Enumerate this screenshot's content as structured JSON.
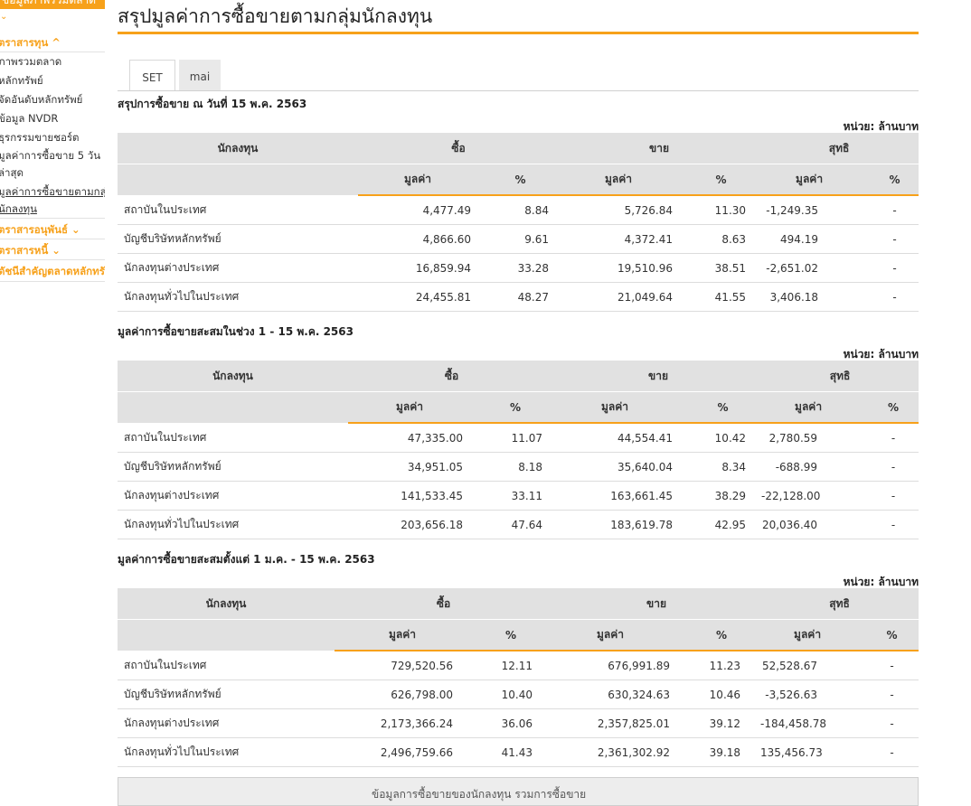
{
  "sidebar": {
    "top_label": "ข้อมูลภาพรวมตลาด",
    "caret": "⌄",
    "items": [
      {
        "label": "ตราสารทุน ^",
        "kind": "head"
      },
      {
        "label": "ภาพรวมตลาด",
        "kind": "item"
      },
      {
        "label": "หลักทรัพย์",
        "kind": "item"
      },
      {
        "label": "จัดอันดับหลักทรัพย์",
        "kind": "item"
      },
      {
        "label": "ข้อมูล NVDR",
        "kind": "item"
      },
      {
        "label": "ธุรกรรมขายชอร์ต",
        "kind": "item"
      },
      {
        "label": "มูลค่าการซื้อขาย 5 วัน",
        "kind": "item"
      },
      {
        "label": "ล่าสุด",
        "kind": "item"
      },
      {
        "label": "มูลค่าการซื้อขายตามกลุ่ม",
        "kind": "active"
      },
      {
        "label": "นักลงทุน",
        "kind": "active"
      },
      {
        "label": "ตราสารอนุพันธ์ ⌄",
        "kind": "head"
      },
      {
        "label": "ตราสารหนี้ ⌄",
        "kind": "head"
      },
      {
        "label": "ดัชนีสำคัญตลาดหลักทรัพย์",
        "kind": "head"
      }
    ]
  },
  "page": {
    "title": "สรุปมูลค่าการซื้อขายตามกลุ่มนักลงทุน",
    "tabs": [
      "SET",
      "mai"
    ],
    "unit": "หน่วย: ล้านบาท",
    "bottom_note": "ข้อมูลการซื้อขายของนักลงทุน รวมการซื้อขาย"
  },
  "headers": {
    "investor": "นักลงทุน",
    "buy": "ซื้อ",
    "sell": "ขาย",
    "net": "สุทธิ",
    "value": "มูลค่า",
    "pct": "%"
  },
  "sections": [
    {
      "title": "สรุปการซื้อขาย ณ วันที่ 15 พ.ค. 2563",
      "rows": [
        {
          "name": "สถาบันในประเทศ",
          "buy": "4,477.49",
          "buy_pct": "8.84",
          "sell": "5,726.84",
          "sell_pct": "11.30",
          "net": "-1,249.35",
          "net_sign": "neg",
          "net_pct": "-"
        },
        {
          "name": "บัญชีบริษัทหลักทรัพย์",
          "buy": "4,866.60",
          "buy_pct": "9.61",
          "sell": "4,372.41",
          "sell_pct": "8.63",
          "net": "494.19",
          "net_sign": "pos",
          "net_pct": "-"
        },
        {
          "name": "นักลงทุนต่างประเทศ",
          "buy": "16,859.94",
          "buy_pct": "33.28",
          "sell": "19,510.96",
          "sell_pct": "38.51",
          "net": "-2,651.02",
          "net_sign": "neg",
          "net_pct": "-"
        },
        {
          "name": "นักลงทุนทั่วไปในประเทศ",
          "buy": "24,455.81",
          "buy_pct": "48.27",
          "sell": "21,049.64",
          "sell_pct": "41.55",
          "net": "3,406.18",
          "net_sign": "pos",
          "net_pct": "-"
        }
      ]
    },
    {
      "title": "มูลค่าการซื้อขายสะสมในช่วง 1 - 15 พ.ค. 2563",
      "rows": [
        {
          "name": "สถาบันในประเทศ",
          "buy": "47,335.00",
          "buy_pct": "11.07",
          "sell": "44,554.41",
          "sell_pct": "10.42",
          "net": "2,780.59",
          "net_sign": "pos",
          "net_pct": "-"
        },
        {
          "name": "บัญชีบริษัทหลักทรัพย์",
          "buy": "34,951.05",
          "buy_pct": "8.18",
          "sell": "35,640.04",
          "sell_pct": "8.34",
          "net": "-688.99",
          "net_sign": "neg",
          "net_pct": "-"
        },
        {
          "name": "นักลงทุนต่างประเทศ",
          "buy": "141,533.45",
          "buy_pct": "33.11",
          "sell": "163,661.45",
          "sell_pct": "38.29",
          "net": "-22,128.00",
          "net_sign": "neg",
          "net_pct": "-"
        },
        {
          "name": "นักลงทุนทั่วไปในประเทศ",
          "buy": "203,656.18",
          "buy_pct": "47.64",
          "sell": "183,619.78",
          "sell_pct": "42.95",
          "net": "20,036.40",
          "net_sign": "pos",
          "net_pct": "-"
        }
      ]
    },
    {
      "title": "มูลค่าการซื้อขายสะสมตั้งแต่ 1 ม.ค. - 15 พ.ค. 2563",
      "rows": [
        {
          "name": "สถาบันในประเทศ",
          "buy": "729,520.56",
          "buy_pct": "12.11",
          "sell": "676,991.89",
          "sell_pct": "11.23",
          "net": "52,528.67",
          "net_sign": "pos",
          "net_pct": "-"
        },
        {
          "name": "บัญชีบริษัทหลักทรัพย์",
          "buy": "626,798.00",
          "buy_pct": "10.40",
          "sell": "630,324.63",
          "sell_pct": "10.46",
          "net": "-3,526.63",
          "net_sign": "neg",
          "net_pct": "-"
        },
        {
          "name": "นักลงทุนต่างประเทศ",
          "buy": "2,173,366.24",
          "buy_pct": "36.06",
          "sell": "2,357,825.01",
          "sell_pct": "39.12",
          "net": "-184,458.78",
          "net_sign": "neg",
          "net_pct": "-"
        },
        {
          "name": "นักลงทุนทั่วไปในประเทศ",
          "buy": "2,496,759.66",
          "buy_pct": "41.43",
          "sell": "2,361,302.92",
          "sell_pct": "39.18",
          "net": "135,456.73",
          "net_sign": "pos",
          "net_pct": "-"
        }
      ]
    }
  ],
  "colors": {
    "accent": "#f7a11a",
    "negative": "#d1141c",
    "positive": "#2e8b2e",
    "header_bg": "#e1e1e1"
  }
}
